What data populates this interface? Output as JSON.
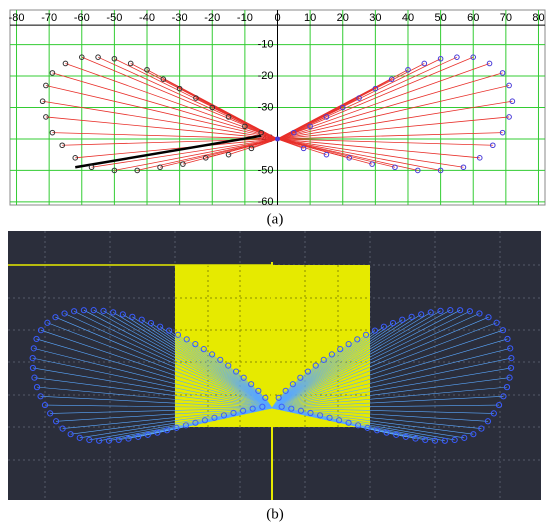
{
  "chart_data": {
    "type": "scatter",
    "xlim": [
      -82,
      82
    ],
    "ylim": [
      -61,
      1
    ],
    "xticks": [
      -80,
      -70,
      -60,
      -50,
      -40,
      -30,
      -20,
      -10,
      0,
      10,
      20,
      30,
      40,
      50,
      60,
      70,
      80
    ],
    "yticks": [
      -60,
      -50,
      -40,
      -30,
      -20,
      -10
    ],
    "grid": true,
    "grid_color": "#33cc33",
    "ray_color": "#e8302a",
    "hub": {
      "x": 0,
      "y": -40
    },
    "series": [
      {
        "color": "#333333",
        "x": [
          -5,
          -10,
          -15,
          -20,
          -25,
          -30,
          -35,
          -40,
          -45,
          -50,
          -55,
          -60,
          -65,
          -69,
          -71,
          -72,
          -71,
          -69,
          -66,
          -62,
          -57,
          -50,
          -43,
          -36,
          -29,
          -22,
          -15,
          -8
        ],
        "y": [
          -38,
          -36,
          -33,
          -30,
          -27,
          -24,
          -21,
          -18,
          -16,
          -14.5,
          -14,
          -14,
          -16,
          -19,
          -23,
          -28,
          -33,
          -38,
          -42,
          -46,
          -49,
          -50,
          -50,
          -49,
          -48,
          -46,
          -45,
          -43
        ]
      },
      {
        "color": "#4a3cd8",
        "x": [
          5,
          10,
          15,
          20,
          25,
          30,
          35,
          40,
          45,
          50,
          55,
          60,
          65,
          69,
          71,
          72,
          71,
          69,
          66,
          62,
          57,
          50,
          43,
          36,
          29,
          22,
          15,
          8
        ],
        "y": [
          -38,
          -36,
          -33,
          -30,
          -27,
          -24,
          -21,
          -18,
          -16,
          -14.5,
          -14,
          -14,
          -16,
          -19,
          -23,
          -28,
          -33,
          -38,
          -42,
          -46,
          -49,
          -50,
          -50,
          -49,
          -48,
          -46,
          -45,
          -43
        ]
      }
    ],
    "highlight": {
      "x": [
        -62,
        -5
      ],
      "y": [
        -49,
        -39
      ],
      "color": "#000000"
    },
    "caption_a": "(a)",
    "caption_b": "(b)"
  }
}
